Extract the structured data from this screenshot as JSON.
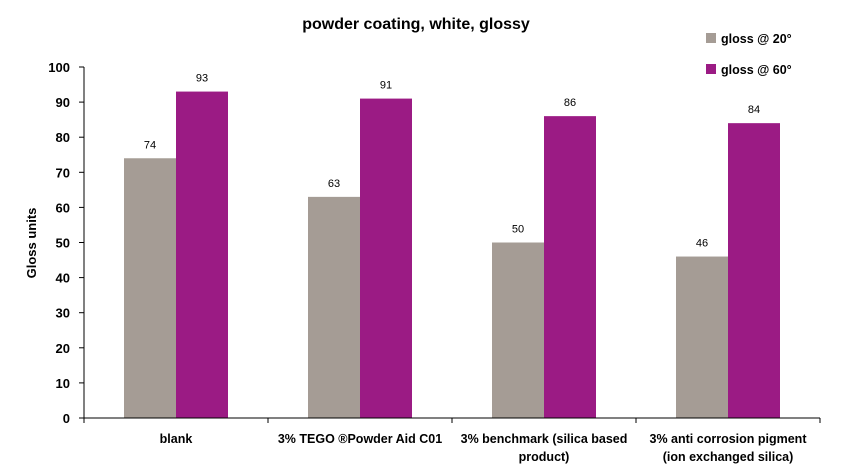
{
  "chart_data": {
    "type": "bar",
    "title": "powder coating, white, glossy",
    "xlabel": "",
    "ylabel": "Gloss units",
    "ylim": [
      0,
      100
    ],
    "ytick_step": 10,
    "ytick_labels": [
      "0",
      "10",
      "20",
      "30",
      "40",
      "50",
      "60",
      "70",
      "80",
      "90",
      "100"
    ],
    "categories": [
      {
        "lines": [
          "blank"
        ]
      },
      {
        "lines": [
          "3% TEGO ®Powder Aid C01"
        ]
      },
      {
        "lines": [
          "3% benchmark (silica based",
          "product)"
        ]
      },
      {
        "lines": [
          "3% anti corrosion pigment",
          "(ion exchanged silica)"
        ]
      }
    ],
    "series": [
      {
        "name": "gloss @ 20°",
        "color": "#a59c95",
        "values": [
          74,
          63,
          50,
          46
        ],
        "labels": [
          "74",
          "63",
          "50",
          "46"
        ]
      },
      {
        "name": "gloss @ 60°",
        "color": "#9b1b84",
        "values": [
          93,
          91,
          86,
          84
        ],
        "labels": [
          "93",
          "91",
          "86",
          "84"
        ]
      }
    ],
    "grid": false,
    "legend": "top-right"
  }
}
